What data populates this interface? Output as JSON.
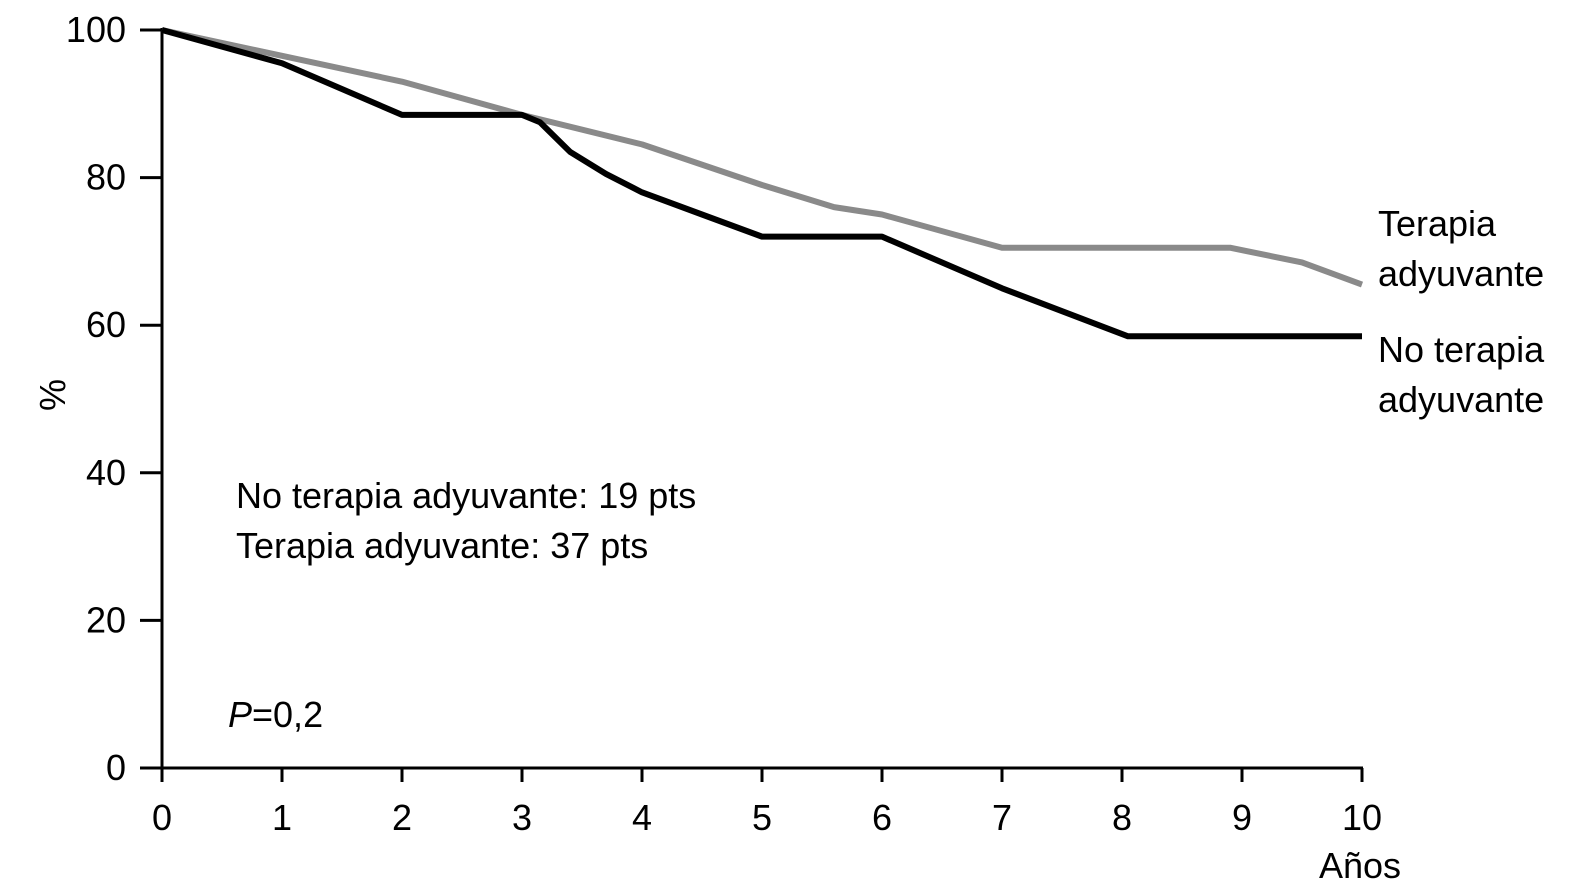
{
  "chart_data": {
    "type": "line",
    "xlabel": "Años",
    "ylabel": "%",
    "xlim": [
      0,
      10
    ],
    "ylim": [
      0,
      100
    ],
    "x_ticks": [
      "0",
      "1",
      "2",
      "3",
      "4",
      "5",
      "6",
      "7",
      "8",
      "9",
      "10"
    ],
    "y_ticks": [
      "0",
      "20",
      "40",
      "60",
      "80",
      "100"
    ],
    "grid": false,
    "series": [
      {
        "name": "Terapia adyuvante",
        "color": "#8a8a8a",
        "points": [
          [
            0,
            100
          ],
          [
            1,
            96.5
          ],
          [
            2,
            93
          ],
          [
            3,
            88.5
          ],
          [
            4,
            84.5
          ],
          [
            5,
            79
          ],
          [
            5.6,
            76
          ],
          [
            6,
            75
          ],
          [
            7,
            70.5
          ],
          [
            8,
            70.5
          ],
          [
            8.9,
            70.5
          ],
          [
            9.5,
            68.5
          ],
          [
            10,
            65.5
          ]
        ]
      },
      {
        "name": "No terapia adyuvante",
        "color": "#000000",
        "points": [
          [
            0,
            100
          ],
          [
            1,
            95.5
          ],
          [
            2,
            88.5
          ],
          [
            3,
            88.5
          ],
          [
            3.15,
            87.5
          ],
          [
            3.4,
            83.5
          ],
          [
            3.7,
            80.5
          ],
          [
            4,
            78
          ],
          [
            4.5,
            75
          ],
          [
            5,
            72
          ],
          [
            6,
            72
          ],
          [
            7,
            65
          ],
          [
            8.05,
            58.5
          ],
          [
            10,
            58.5
          ]
        ]
      }
    ],
    "annotations": {
      "count_no": "No terapia adyuvante: 19 pts",
      "count_yes": "Terapia adyuvante: 37 pts",
      "p_letter": "P",
      "p_value": "=0,2"
    },
    "end_labels": {
      "yes_line1": "Terapia",
      "yes_line2": "adyuvante",
      "no_line1": "No terapia",
      "no_line2": "adyuvante"
    }
  }
}
